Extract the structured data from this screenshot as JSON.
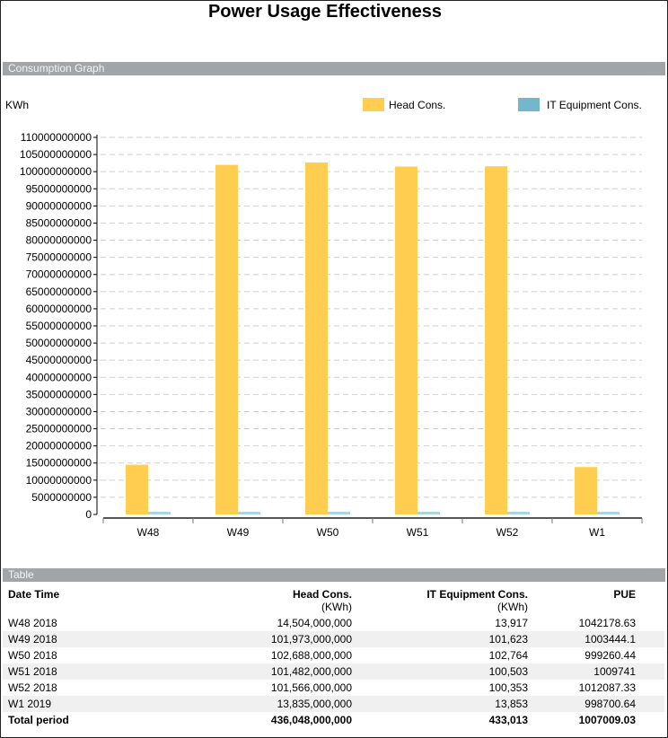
{
  "title": "Power Usage Effectiveness",
  "sections": {
    "graph": "Consumption Graph",
    "table": "Table"
  },
  "colors": {
    "head": "#ffcd50",
    "it": "#74b6cb",
    "section_bar": "#a2a5a7"
  },
  "chart_data": {
    "type": "bar",
    "ylabel": "KWh",
    "ylim": [
      0,
      110000000000
    ],
    "ytick_step": 5000000000,
    "grid": true,
    "legend_placement": "top-right",
    "categories": [
      "W48",
      "W49",
      "W50",
      "W51",
      "W52",
      "W1"
    ],
    "series": [
      {
        "name": "Head Cons.",
        "values": [
          14504000000,
          101973000000,
          102688000000,
          101482000000,
          101566000000,
          13835000000
        ]
      },
      {
        "name": "IT Equipment Cons.",
        "values": [
          13917,
          101623,
          102764,
          100503,
          100353,
          13853
        ]
      }
    ]
  },
  "table": {
    "headers": [
      {
        "label": "Date Time",
        "unit": ""
      },
      {
        "label": "Head Cons.",
        "unit": "(KWh)"
      },
      {
        "label": "IT Equipment Cons.",
        "unit": "(KWh)"
      },
      {
        "label": "PUE",
        "unit": ""
      }
    ],
    "rows": [
      [
        "W48 2018",
        "14,504,000,000",
        "13,917",
        "1042178.63"
      ],
      [
        "W49 2018",
        "101,973,000,000",
        "101,623",
        "1003444.1"
      ],
      [
        "W50 2018",
        "102,688,000,000",
        "102,764",
        "999260.44"
      ],
      [
        "W51 2018",
        "101,482,000,000",
        "100,503",
        "1009741"
      ],
      [
        "W52 2018",
        "101,566,000,000",
        "100,353",
        "1012087.33"
      ],
      [
        "W1 2019",
        "13,835,000,000",
        "13,853",
        "998700.64"
      ]
    ],
    "total": [
      "Total period",
      "436,048,000,000",
      "433,013",
      "1007009.03"
    ]
  }
}
